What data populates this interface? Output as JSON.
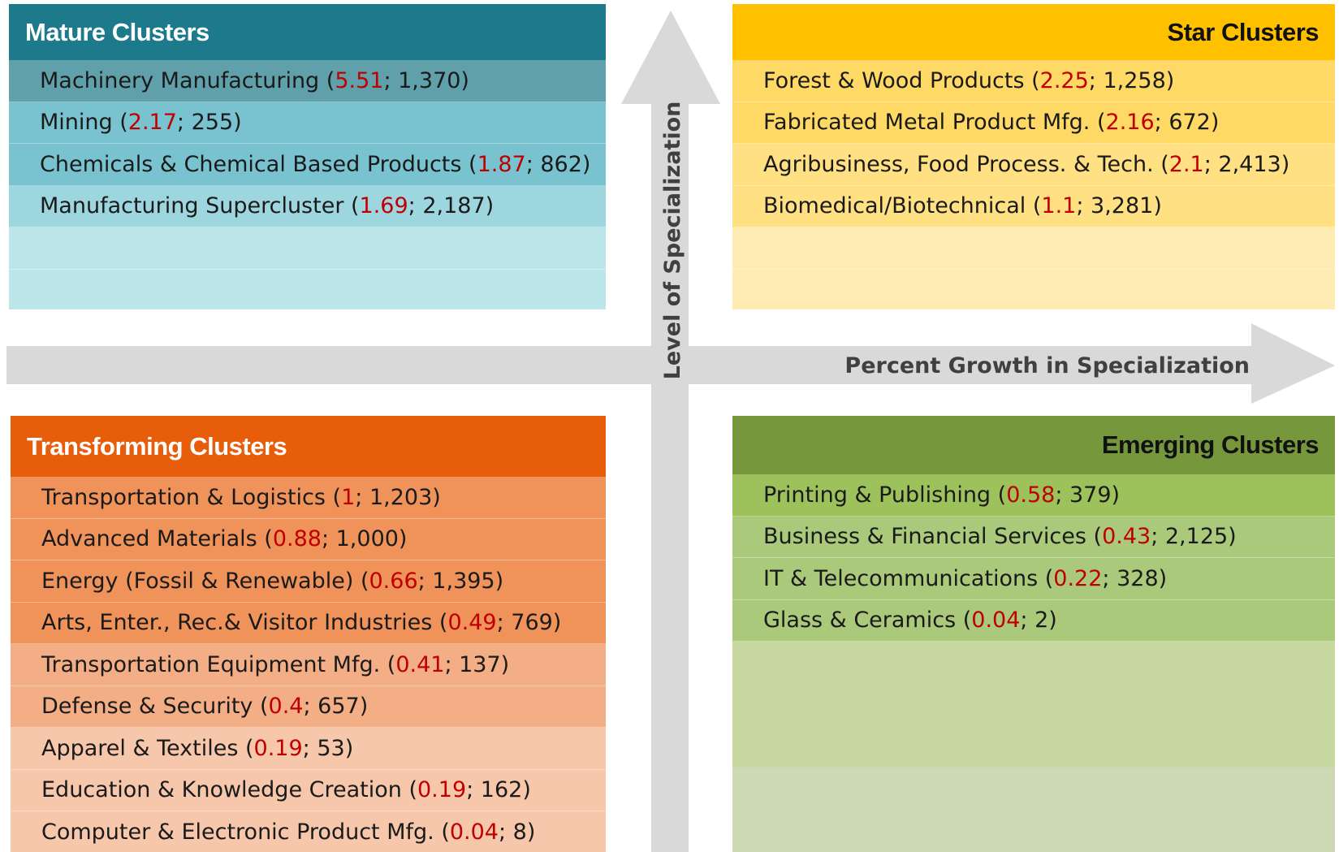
{
  "axes": {
    "vertical": "Level of Specialization",
    "horizontal": "Percent Growth in Specialization"
  },
  "quadrants": [
    {
      "title": "Mature Clusters",
      "items": [
        {
          "text": "Machinery Manufacturing (",
          "highlight": "5.51",
          "tail": "; 1,370)"
        },
        {
          "text": "Mining (",
          "highlight": "2.17",
          "tail": "; 255)"
        },
        {
          "text": "Chemicals & Chemical Based Products (",
          "highlight": "1.87",
          "tail": "; 862)"
        },
        {
          "text": "Manufacturing Supercluster (",
          "highlight": "1.69",
          "tail": "; 2,187)"
        }
      ]
    },
    {
      "title": "Star Clusters",
      "items": [
        {
          "text": "Forest & Wood Products (",
          "highlight": "2.25",
          "tail": "; 1,258)"
        },
        {
          "text": "Fabricated Metal Product Mfg. (",
          "highlight": "2.16",
          "tail": "; 672)"
        },
        {
          "text": "Agribusiness, Food Process. & Tech. (",
          "highlight": "2.1",
          "tail": "; 2,413)"
        },
        {
          "text": "Biomedical/Biotechnical (",
          "highlight": "1.1",
          "tail": "; 3,281)"
        }
      ]
    },
    {
      "title": "Transforming Clusters",
      "items": [
        {
          "text": "Transportation & Logistics (",
          "highlight": "1",
          "tail": "; 1,203)"
        },
        {
          "text": "Advanced Materials (",
          "highlight": "0.88",
          "tail": "; 1,000)"
        },
        {
          "text": "Energy (Fossil & Renewable) (",
          "highlight": "0.66",
          "tail": "; 1,395)"
        },
        {
          "text": "Arts, Enter., Rec.& Visitor Industries (",
          "highlight": "0.49",
          "tail": "; 769)"
        },
        {
          "text": "Transportation Equipment Mfg. (",
          "highlight": "0.41",
          "tail": "; 137)"
        },
        {
          "text": "Defense & Security (",
          "highlight": "0.4",
          "tail": "; 657)"
        },
        {
          "text": "Apparel & Textiles (",
          "highlight": "0.19",
          "tail": "; 53)"
        },
        {
          "text": "Education & Knowledge Creation (",
          "highlight": "0.19",
          "tail": "; 162)"
        },
        {
          "text": "Computer & Electronic Product Mfg. (",
          "highlight": "0.04",
          "tail": "; 8)"
        }
      ]
    },
    {
      "title": "Emerging Clusters",
      "items": [
        {
          "text": "Printing & Publishing (",
          "highlight": "0.58",
          "tail": "; 379)"
        },
        {
          "text": "Business & Financial Services (",
          "highlight": "0.43",
          "tail": "; 2,125)"
        },
        {
          "text": "IT & Telecommunications (",
          "highlight": "0.22",
          "tail": "; 328)"
        },
        {
          "text": "Glass & Ceramics (",
          "highlight": "0.04",
          "tail": "; 2)"
        }
      ]
    }
  ]
}
